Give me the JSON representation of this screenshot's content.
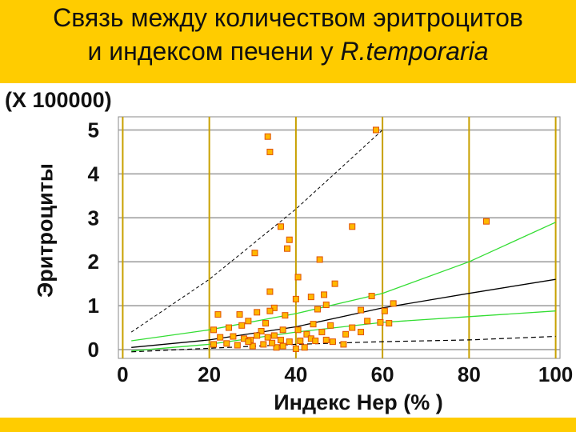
{
  "title": {
    "line1": "Связь между количеством эритроцитов",
    "line2_prefix": "и индексом печени у ",
    "line2_species": "R.temporaria"
  },
  "colors": {
    "band": "#ffcc00",
    "gridline": "#c8a000",
    "marker_fill": "#ffb800",
    "marker_stroke": "#e05000",
    "fit_line": "#000000",
    "confidence_band": "#33dd33",
    "prediction_band": "#000000"
  },
  "chart_data": {
    "type": "scatter",
    "title": "Связь между количеством эритроцитов и индексом печени у R.temporaria",
    "scale_label": "(X 100000)",
    "xlabel": "Индекс Нер (% )",
    "ylabel": "Эритроциты",
    "xlim": [
      -1,
      101
    ],
    "ylim": [
      -0.2,
      5.3
    ],
    "xticks": [
      0,
      20,
      40,
      60,
      80,
      100
    ],
    "yticks": [
      0,
      1,
      2,
      3,
      4,
      5
    ],
    "grid": true,
    "series": [
      {
        "kind": "points",
        "points": [
          [
            33.5,
            4.85
          ],
          [
            34,
            4.5
          ],
          [
            58.5,
            5.0
          ],
          [
            84,
            2.92
          ],
          [
            36.5,
            2.8
          ],
          [
            38.5,
            2.5
          ],
          [
            38,
            2.3
          ],
          [
            53,
            2.8
          ],
          [
            30.5,
            2.2
          ],
          [
            45.5,
            2.05
          ],
          [
            40.5,
            1.65
          ],
          [
            34,
            1.32
          ],
          [
            49,
            1.5
          ],
          [
            43.5,
            1.2
          ],
          [
            46.5,
            1.25
          ],
          [
            57.5,
            1.22
          ],
          [
            62.5,
            1.05
          ],
          [
            40,
            1.15
          ],
          [
            35,
            0.95
          ],
          [
            45,
            0.92
          ],
          [
            55,
            0.9
          ],
          [
            60.5,
            0.88
          ],
          [
            47,
            1.02
          ],
          [
            22,
            0.8
          ],
          [
            27,
            0.8
          ],
          [
            31,
            0.85
          ],
          [
            34,
            0.88
          ],
          [
            37.5,
            0.78
          ],
          [
            29,
            0.65
          ],
          [
            33,
            0.6
          ],
          [
            27.5,
            0.55
          ],
          [
            24.5,
            0.5
          ],
          [
            40.5,
            0.45
          ],
          [
            44,
            0.58
          ],
          [
            46,
            0.4
          ],
          [
            48,
            0.55
          ],
          [
            42.5,
            0.35
          ],
          [
            32,
            0.42
          ],
          [
            35,
            0.32
          ],
          [
            37,
            0.45
          ],
          [
            55,
            0.4
          ],
          [
            56.5,
            0.65
          ],
          [
            59.5,
            0.62
          ],
          [
            61.5,
            0.6
          ],
          [
            53,
            0.5
          ],
          [
            51.5,
            0.35
          ],
          [
            21,
            0.45
          ],
          [
            22.5,
            0.28
          ],
          [
            25.5,
            0.3
          ],
          [
            28,
            0.25
          ],
          [
            29.5,
            0.22
          ],
          [
            31,
            0.32
          ],
          [
            33.5,
            0.28
          ],
          [
            36.5,
            0.22
          ],
          [
            38.5,
            0.18
          ],
          [
            41,
            0.2
          ],
          [
            43.5,
            0.25
          ],
          [
            44.5,
            0.2
          ],
          [
            47,
            0.22
          ],
          [
            48.5,
            0.18
          ],
          [
            51,
            0.12
          ],
          [
            21,
            0.12
          ],
          [
            24,
            0.14
          ],
          [
            26.5,
            0.1
          ],
          [
            30,
            0.08
          ],
          [
            32.5,
            0.12
          ],
          [
            35.5,
            0.05
          ],
          [
            37,
            0.08
          ],
          [
            40,
            0.02
          ],
          [
            42,
            0.05
          ],
          [
            34.5,
            0.15
          ],
          [
            29,
            0.18
          ]
        ]
      },
      {
        "kind": "fit",
        "name": "",
        "points": [
          [
            2,
            0.05
          ],
          [
            20,
            0.22
          ],
          [
            40,
            0.52
          ],
          [
            60,
            0.95
          ],
          [
            80,
            1.28
          ],
          [
            100,
            1.6
          ]
        ]
      },
      {
        "kind": "upper_confidence",
        "name": "",
        "points": [
          [
            2,
            0.2
          ],
          [
            20,
            0.45
          ],
          [
            40,
            0.82
          ],
          [
            60,
            1.28
          ],
          [
            80,
            2.0
          ],
          [
            100,
            2.9
          ]
        ]
      },
      {
        "kind": "lower_confidence",
        "name": "",
        "points": [
          [
            2,
            -0.03
          ],
          [
            20,
            0.12
          ],
          [
            40,
            0.4
          ],
          [
            60,
            0.62
          ],
          [
            80,
            0.75
          ],
          [
            100,
            0.88
          ]
        ]
      },
      {
        "kind": "upper_prediction",
        "name": "",
        "points": [
          [
            2,
            0.4
          ],
          [
            20,
            1.6
          ],
          [
            40,
            3.2
          ],
          [
            60,
            5.0
          ]
        ]
      },
      {
        "kind": "lower_prediction",
        "name": "",
        "points": [
          [
            2,
            -0.05
          ],
          [
            40,
            0.12
          ],
          [
            60,
            0.18
          ],
          [
            80,
            0.22
          ],
          [
            100,
            0.3
          ]
        ]
      }
    ]
  }
}
